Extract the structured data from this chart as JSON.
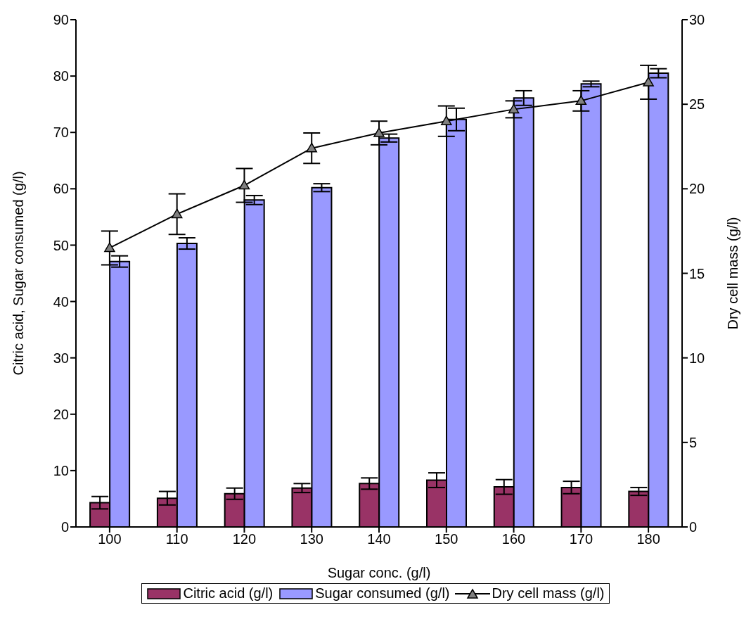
{
  "chart_data": {
    "type": "bar",
    "xlabel": "Sugar conc. (g/l)",
    "ylabel": "Citric acid, Sugar consumed (g/l)",
    "y2label": "Dry cell mass (g/l)",
    "categories": [
      "100",
      "110",
      "120",
      "130",
      "140",
      "150",
      "160",
      "170",
      "180"
    ],
    "series": [
      {
        "name": "Citric acid (g/l)",
        "color": "#993366",
        "values": [
          4.3,
          5.1,
          5.9,
          6.9,
          7.7,
          8.3,
          7.1,
          7.0,
          6.3
        ],
        "errors": [
          1.1,
          1.2,
          1.0,
          0.8,
          1.0,
          1.3,
          1.3,
          1.1,
          0.7
        ]
      },
      {
        "name": "Sugar consumed (g/l)",
        "color": "#9999ff",
        "values": [
          47.1,
          50.3,
          58.0,
          60.2,
          69.0,
          72.3,
          76.1,
          78.6,
          80.5
        ],
        "errors": [
          1.0,
          1.0,
          0.8,
          0.7,
          0.7,
          2.0,
          1.3,
          0.5,
          0.8
        ]
      },
      {
        "name": "Dry cell mass (g/l)",
        "type": "line",
        "axis": "y2",
        "color": "#000000",
        "marker": "triangle",
        "values": [
          16.5,
          18.5,
          20.2,
          22.4,
          23.3,
          24.0,
          24.7,
          25.2,
          26.3
        ],
        "errors": [
          1.0,
          1.2,
          1.0,
          0.9,
          0.7,
          0.9,
          0.5,
          0.6,
          1.0
        ]
      }
    ],
    "ylim": [
      0,
      90
    ],
    "yticks": [
      0,
      10,
      20,
      30,
      40,
      50,
      60,
      70,
      80,
      90
    ],
    "y2lim": [
      0,
      30
    ],
    "y2ticks": [
      0,
      5,
      10,
      15,
      20,
      25,
      30
    ],
    "grid": false,
    "legend": "bottom"
  }
}
